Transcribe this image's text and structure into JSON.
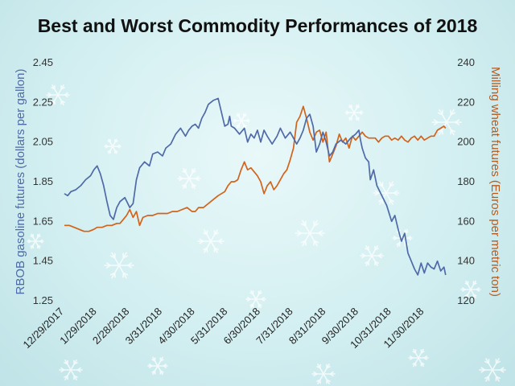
{
  "chart_data": {
    "type": "line",
    "title": "Best and Worst Commodity Performances of 2018",
    "xlabel": "",
    "y_left_label": "RBOB gasoline futures (dollars per gallon)",
    "y_right_label": "Milling wheat futures (Euros per metric ton)",
    "x_ticks": [
      "12/29/2017",
      "1/29/2018",
      "2/28/2018",
      "3/31/2018",
      "4/30/2018",
      "5/31/2018",
      "6/30/2018",
      "7/31/2018",
      "8/31/2018",
      "9/30/2018",
      "10/31/2018",
      "11/30/2018"
    ],
    "y_left_ticks": [
      "2.45",
      "2.25",
      "2.05",
      "1.85",
      "1.65",
      "1.45",
      "1.25"
    ],
    "y_right_ticks": [
      "240",
      "220",
      "200",
      "180",
      "160",
      "140",
      "120"
    ],
    "y_left_range": [
      1.25,
      2.45
    ],
    "y_right_range": [
      120,
      240
    ],
    "x_range": [
      0,
      12
    ],
    "colors": {
      "left": "#4f6aa8",
      "right": "#d2631b"
    },
    "series": [
      {
        "name": "RBOB gasoline futures",
        "axis": "left",
        "x": [
          0,
          0.1,
          0.2,
          0.35,
          0.5,
          0.65,
          0.8,
          0.9,
          1.0,
          1.1,
          1.2,
          1.3,
          1.4,
          1.5,
          1.55,
          1.6,
          1.7,
          1.85,
          2.0,
          2.1,
          2.2,
          2.3,
          2.45,
          2.6,
          2.7,
          2.85,
          3.0,
          3.1,
          3.25,
          3.4,
          3.55,
          3.7,
          3.8,
          3.9,
          4.0,
          4.1,
          4.2,
          4.3,
          4.4,
          4.55,
          4.7,
          4.8,
          4.9,
          5.0,
          5.05,
          5.1,
          5.2,
          5.35,
          5.5,
          5.6,
          5.7,
          5.8,
          5.9,
          6.0,
          6.1,
          6.2,
          6.35,
          6.5,
          6.6,
          6.75,
          6.9,
          7.0,
          7.1,
          7.2,
          7.3,
          7.4,
          7.5,
          7.6,
          7.7,
          7.8,
          7.9,
          8.0,
          8.1,
          8.2,
          8.3,
          8.45,
          8.6,
          8.75,
          8.9,
          9.0,
          9.05,
          9.1,
          9.2,
          9.3,
          9.35,
          9.45,
          9.55,
          9.7,
          9.85,
          10.0,
          10.1,
          10.2,
          10.3,
          10.4,
          10.5,
          10.6,
          10.7,
          10.8,
          10.9,
          11.0,
          11.1,
          11.2,
          11.3,
          11.4,
          11.5,
          11.6,
          11.65
        ],
        "y": [
          1.79,
          1.78,
          1.8,
          1.81,
          1.83,
          1.86,
          1.88,
          1.91,
          1.93,
          1.89,
          1.83,
          1.75,
          1.68,
          1.66,
          1.69,
          1.72,
          1.75,
          1.77,
          1.72,
          1.74,
          1.86,
          1.92,
          1.95,
          1.93,
          1.99,
          2.0,
          1.98,
          2.02,
          2.04,
          2.09,
          2.12,
          2.08,
          2.11,
          2.13,
          2.14,
          2.12,
          2.17,
          2.2,
          2.24,
          2.26,
          2.27,
          2.2,
          2.13,
          2.14,
          2.18,
          2.13,
          2.12,
          2.09,
          2.12,
          2.05,
          2.09,
          2.07,
          2.11,
          2.05,
          2.11,
          2.08,
          2.04,
          2.08,
          2.12,
          2.07,
          2.1,
          2.07,
          2.04,
          2.07,
          2.11,
          2.17,
          2.19,
          2.13,
          2.0,
          2.04,
          2.1,
          2.05,
          1.98,
          2.0,
          2.04,
          2.06,
          2.04,
          2.07,
          2.09,
          2.11,
          2.06,
          2.02,
          1.97,
          1.95,
          1.86,
          1.91,
          1.83,
          1.78,
          1.73,
          1.65,
          1.68,
          1.61,
          1.55,
          1.59,
          1.49,
          1.45,
          1.41,
          1.38,
          1.44,
          1.39,
          1.44,
          1.42,
          1.41,
          1.45,
          1.4,
          1.42,
          1.38
        ]
      },
      {
        "name": "Milling wheat futures",
        "axis": "right",
        "x": [
          0,
          0.15,
          0.3,
          0.45,
          0.6,
          0.75,
          0.9,
          1.0,
          1.15,
          1.3,
          1.45,
          1.6,
          1.7,
          1.8,
          1.9,
          2.0,
          2.1,
          2.2,
          2.3,
          2.4,
          2.55,
          2.7,
          2.85,
          3.0,
          3.15,
          3.3,
          3.45,
          3.6,
          3.75,
          3.9,
          4.0,
          4.1,
          4.25,
          4.4,
          4.55,
          4.7,
          4.8,
          4.9,
          5.0,
          5.1,
          5.2,
          5.3,
          5.4,
          5.5,
          5.6,
          5.7,
          5.8,
          5.9,
          6.0,
          6.1,
          6.2,
          6.3,
          6.4,
          6.5,
          6.6,
          6.7,
          6.8,
          6.9,
          7.0,
          7.1,
          7.2,
          7.3,
          7.4,
          7.5,
          7.6,
          7.7,
          7.8,
          7.9,
          8.0,
          8.1,
          8.2,
          8.3,
          8.4,
          8.5,
          8.6,
          8.7,
          8.8,
          8.9,
          9.0,
          9.1,
          9.2,
          9.3,
          9.4,
          9.5,
          9.6,
          9.7,
          9.8,
          9.9,
          10.0,
          10.1,
          10.2,
          10.3,
          10.4,
          10.5,
          10.6,
          10.7,
          10.8,
          10.9,
          11.0,
          11.1,
          11.2,
          11.3,
          11.4,
          11.5,
          11.6,
          11.65
        ],
        "y": [
          158,
          158,
          157,
          156,
          155,
          155,
          156,
          157,
          157,
          158,
          158,
          159,
          159,
          161,
          163,
          166,
          162,
          165,
          158,
          162,
          163,
          163,
          164,
          164,
          164,
          165,
          165,
          166,
          167,
          165,
          165,
          167,
          167,
          169,
          171,
          173,
          174,
          175,
          178,
          180,
          180,
          181,
          186,
          190,
          186,
          187,
          185,
          183,
          180,
          174,
          178,
          180,
          176,
          178,
          181,
          184,
          186,
          191,
          197,
          210,
          213,
          218,
          212,
          205,
          201,
          205,
          206,
          200,
          205,
          190,
          194,
          198,
          204,
          200,
          202,
          197,
          203,
          201,
          203,
          205,
          203,
          202,
          202,
          202,
          200,
          202,
          203,
          203,
          201,
          202,
          201,
          203,
          201,
          200,
          202,
          203,
          201,
          203,
          201,
          202,
          203,
          203,
          206,
          207,
          208,
          207
        ]
      }
    ]
  }
}
